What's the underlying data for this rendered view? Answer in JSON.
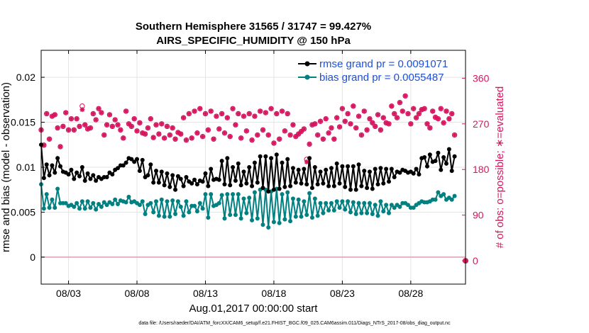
{
  "chart_data": {
    "type": "line",
    "title_line1": "Southern Hemisphere 31565 / 31747 = 99.427%",
    "title_line2": "AIRS_SPECIFIC_HUMIDITY @ 150 hPa",
    "xlabel": "Aug.01,2017 00:00:00 start",
    "ylabel": "rmse and bias (model - observation)",
    "ylabel_right": "# of obs: o=possible; ∗=evaluated",
    "footnote": "data file: /Users/raeder/DAI/ATM_forcXX/CAM6_setup/f.e21.FHIST_BGC.f09_025.CAM6assim.011/Diags_NTrS_2017-08/obs_diag_output.nc",
    "x_tick_labels": [
      "08/03",
      "08/08",
      "08/13",
      "08/18",
      "08/23",
      "08/28"
    ],
    "x_tick_values": [
      3,
      8,
      13,
      18,
      23,
      28
    ],
    "xlim": [
      1,
      32
    ],
    "ylim_left": [
      -0.003,
      0.023
    ],
    "y_ticks_left": [
      "0",
      "0.005",
      "0.01",
      "0.015",
      "0.02"
    ],
    "y_tick_values_left": [
      0,
      0.005,
      0.01,
      0.015,
      0.02
    ],
    "ylim_right": [
      -46,
      415
    ],
    "y_ticks_right": [
      "0",
      "90",
      "180",
      "270",
      "360"
    ],
    "y_tick_values_right": [
      0,
      90,
      180,
      270,
      360
    ],
    "legend": {
      "rmse": "rmse grand pr = 0.0091071",
      "bias": "bias grand pr = 0.0055487"
    },
    "colors": {
      "rmse": "#000000",
      "bias": "#008080",
      "obs": "#d6155f",
      "zero_line": "#d8a0ae"
    },
    "series": [
      {
        "name": "rmse",
        "values": [
          0.0125,
          0.0088,
          0.0103,
          0.0091,
          0.0102,
          0.0094,
          0.011,
          0.0101,
          0.0095,
          0.0094,
          0.0092,
          0.0097,
          0.0087,
          0.0094,
          0.009,
          0.01,
          0.0085,
          0.0093,
          0.0087,
          0.0091,
          0.0085,
          0.0089,
          0.0087,
          0.0089,
          0.0089,
          0.0094,
          0.0092,
          0.0097,
          0.0099,
          0.0102,
          0.0102,
          0.0105,
          0.011,
          0.0109,
          0.0106,
          0.0109,
          0.0096,
          0.0108,
          0.0089,
          0.0091,
          0.0103,
          0.0083,
          0.0096,
          0.0083,
          0.0095,
          0.008,
          0.0093,
          0.0078,
          0.0091,
          0.0075,
          0.009,
          0.0087,
          0.0079,
          0.0089,
          0.0084,
          0.0082,
          0.0086,
          0.0081,
          0.0085,
          0.0084,
          0.0093,
          0.0079,
          0.0098,
          0.0086,
          0.0087,
          0.0086,
          0.0107,
          0.0081,
          0.011,
          0.008,
          0.01,
          0.0085,
          0.0104,
          0.008,
          0.0095,
          0.0082,
          0.01,
          0.0079,
          0.0105,
          0.0083,
          0.0112,
          0.0077,
          0.0112,
          0.0073,
          0.011,
          0.0075,
          0.0114,
          0.0076,
          0.0105,
          0.0078,
          0.0109,
          0.0079,
          0.0099,
          0.0083,
          0.0097,
          0.0082,
          0.0098,
          0.0081,
          0.011,
          0.0077,
          0.01,
          0.0081,
          0.0095,
          0.0082,
          0.0097,
          0.0079,
          0.0099,
          0.0079,
          0.0104,
          0.0082,
          0.0101,
          0.0078,
          0.0101,
          0.0075,
          0.0101,
          0.0075,
          0.0103,
          0.0079,
          0.0096,
          0.0077,
          0.0095,
          0.0076,
          0.0098,
          0.0081,
          0.0099,
          0.0082,
          0.0098,
          0.0084,
          0.0098,
          0.0089,
          0.0095,
          0.0094,
          0.0097,
          0.0096,
          0.0094,
          0.0095,
          0.0093,
          0.0098,
          0.0092,
          0.011,
          0.0111,
          0.0101,
          0.0114,
          0.0106,
          0.0107,
          0.0116,
          0.0097,
          0.0111,
          0.0104,
          0.012,
          0.0096,
          0.0112
        ]
      },
      {
        "name": "bias",
        "values": [
          0.0081,
          0.0054,
          0.007,
          0.0055,
          0.0064,
          0.0055,
          0.0076,
          0.006,
          0.006,
          0.006,
          0.0057,
          0.0058,
          0.0056,
          0.006,
          0.0054,
          0.0062,
          0.0054,
          0.0062,
          0.0055,
          0.006,
          0.0053,
          0.0059,
          0.0056,
          0.0061,
          0.0058,
          0.0061,
          0.0059,
          0.0064,
          0.0059,
          0.0063,
          0.0062,
          0.0061,
          0.0067,
          0.0061,
          0.0062,
          0.006,
          0.0058,
          0.0062,
          0.0048,
          0.0058,
          0.006,
          0.005,
          0.0062,
          0.0046,
          0.0064,
          0.0045,
          0.0062,
          0.0045,
          0.0063,
          0.0048,
          0.0062,
          0.0056,
          0.0046,
          0.0062,
          0.005,
          0.0057,
          0.0057,
          0.0051,
          0.006,
          0.0054,
          0.007,
          0.0044,
          0.007,
          0.0057,
          0.0058,
          0.006,
          0.0069,
          0.0043,
          0.007,
          0.0047,
          0.007,
          0.0047,
          0.007,
          0.0043,
          0.0065,
          0.0049,
          0.0066,
          0.0041,
          0.0072,
          0.0043,
          0.0075,
          0.0036,
          0.0075,
          0.0033,
          0.0073,
          0.0039,
          0.0076,
          0.0038,
          0.007,
          0.0042,
          0.0072,
          0.004,
          0.0065,
          0.0045,
          0.0064,
          0.0045,
          0.0062,
          0.0047,
          0.0071,
          0.0044,
          0.0065,
          0.0046,
          0.006,
          0.0049,
          0.006,
          0.0052,
          0.006,
          0.0052,
          0.0062,
          0.0055,
          0.0062,
          0.0053,
          0.0062,
          0.005,
          0.0061,
          0.0048,
          0.006,
          0.0049,
          0.006,
          0.0049,
          0.006,
          0.0048,
          0.0058,
          0.0046,
          0.0062,
          0.0051,
          0.0058,
          0.0049,
          0.0058,
          0.0055,
          0.0058,
          0.0056,
          0.006,
          0.006,
          0.0058,
          0.0055,
          0.0055,
          0.0058,
          0.006,
          0.0062,
          0.0061,
          0.0061,
          0.0062,
          0.0064,
          0.0064,
          0.0072,
          0.0068,
          0.007,
          0.0064,
          0.0066,
          0.0064,
          0.0068
        ]
      },
      {
        "name": "obs_evaluated",
        "values": [
          258,
          228,
          290,
          240,
          285,
          288,
          262,
          225,
          265,
          292,
          258,
          280,
          258,
          280,
          265,
          298,
          268,
          260,
          262,
          290,
          278,
          300,
          292,
          248,
          268,
          288,
          265,
          278,
          268,
          258,
          242,
          295,
          270,
          265,
          280,
          256,
          272,
          252,
          250,
          262,
          280,
          243,
          268,
          250,
          270,
          242,
          265,
          248,
          262,
          240,
          253,
          250,
          282,
          238,
          290,
          242,
          295,
          252,
          300,
          245,
          290,
          258,
          295,
          240,
          285,
          260,
          290,
          252,
          282,
          245,
          300,
          268,
          290,
          242,
          285,
          256,
          290,
          238,
          285,
          248,
          295,
          258,
          292,
          248,
          300,
          232,
          290,
          240,
          295,
          256,
          290,
          248,
          268,
          245,
          250,
          255,
          260,
          195,
          230,
          268,
          270,
          248,
          275,
          240,
          280,
          252,
          262,
          240,
          282,
          264,
          300,
          275,
          290,
          270,
          305,
          262,
          285,
          248,
          295,
          258,
          280,
          272,
          265,
          288,
          258,
          282,
          272,
          270,
          305,
          290,
          282,
          312,
          295,
          325,
          290,
          270,
          300,
          282,
          290,
          298,
          300,
          270,
          262,
          295,
          283,
          280,
          300,
          272,
          295,
          280,
          290,
          248
        ]
      },
      {
        "name": "obs_possible",
        "values": [
          258,
          228,
          290,
          240,
          285,
          288,
          262,
          225,
          265,
          292,
          258,
          280,
          258,
          280,
          265,
          305,
          268,
          260,
          262,
          290,
          278,
          300,
          292,
          248,
          268,
          288,
          265,
          278,
          268,
          258,
          242,
          295,
          270,
          265,
          280,
          256,
          272,
          252,
          250,
          262,
          280,
          243,
          268,
          250,
          270,
          242,
          265,
          248,
          262,
          240,
          253,
          250,
          282,
          238,
          290,
          242,
          295,
          252,
          300,
          245,
          290,
          258,
          295,
          240,
          285,
          260,
          290,
          252,
          282,
          245,
          300,
          268,
          290,
          242,
          285,
          256,
          290,
          238,
          285,
          248,
          295,
          258,
          292,
          248,
          300,
          232,
          290,
          240,
          295,
          256,
          290,
          248,
          268,
          245,
          250,
          255,
          260,
          200,
          230,
          268,
          270,
          248,
          275,
          240,
          280,
          252,
          262,
          240,
          282,
          264,
          300,
          275,
          290,
          270,
          305,
          262,
          285,
          248,
          295,
          258,
          280,
          272,
          265,
          288,
          258,
          282,
          272,
          270,
          305,
          290,
          282,
          312,
          295,
          325,
          290,
          270,
          300,
          282,
          290,
          298,
          300,
          270,
          262,
          295,
          283,
          280,
          300,
          272,
          295,
          280,
          290,
          248
        ]
      }
    ]
  }
}
